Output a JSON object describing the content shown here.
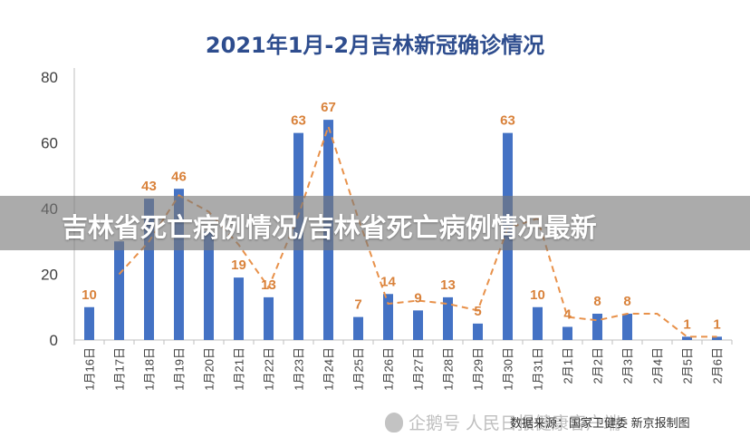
{
  "chart_data": {
    "type": "bar",
    "title": "2021年1月-2月吉林新冠确诊情况",
    "categories": [
      "1月16日",
      "1月17日",
      "1月18日",
      "1月19日",
      "1月20日",
      "1月21日",
      "1月22日",
      "1月23日",
      "1月24日",
      "1月25日",
      "1月26日",
      "1月27日",
      "1月28日",
      "1月29日",
      "1月30日",
      "1月31日",
      "2月1日",
      "2月2日",
      "2月3日",
      "2月4日",
      "2月5日",
      "2月6日"
    ],
    "series": [
      {
        "values": [
          10,
          30,
          43,
          46,
          33,
          19,
          13,
          63,
          67,
          7,
          14,
          9,
          13,
          5,
          63,
          10,
          4,
          8,
          8,
          0,
          1,
          1
        ],
        "color": "#4472c4",
        "kind": "bar"
      },
      {
        "values": [
          null,
          20,
          30,
          44,
          39,
          29,
          16,
          38,
          65,
          37,
          11,
          12,
          11,
          9,
          34,
          37,
          7,
          6,
          8,
          8,
          1,
          1
        ],
        "color": "#e8914a",
        "kind": "moving-average-dashed"
      }
    ],
    "data_labels": [
      "10",
      "",
      "43",
      "46",
      "",
      "19",
      "13",
      "63",
      "67",
      "7",
      "14",
      "9",
      "13",
      "5",
      "63",
      "10",
      "4",
      "8",
      "8",
      "",
      "1",
      "1"
    ],
    "label_color": "#d9823b",
    "ylim": [
      0,
      80
    ],
    "yticks": [
      0,
      20,
      40,
      60,
      80
    ],
    "grid": false,
    "xlabel": "",
    "ylabel": ""
  },
  "overlay": {
    "headline": "吉林省死亡病例情况/吉林省死亡病例情况最新"
  },
  "watermark": {
    "text": "企鹅号 人民日报健康客户端"
  },
  "source_note": "数据来源：国家卫健委  新京报制图"
}
